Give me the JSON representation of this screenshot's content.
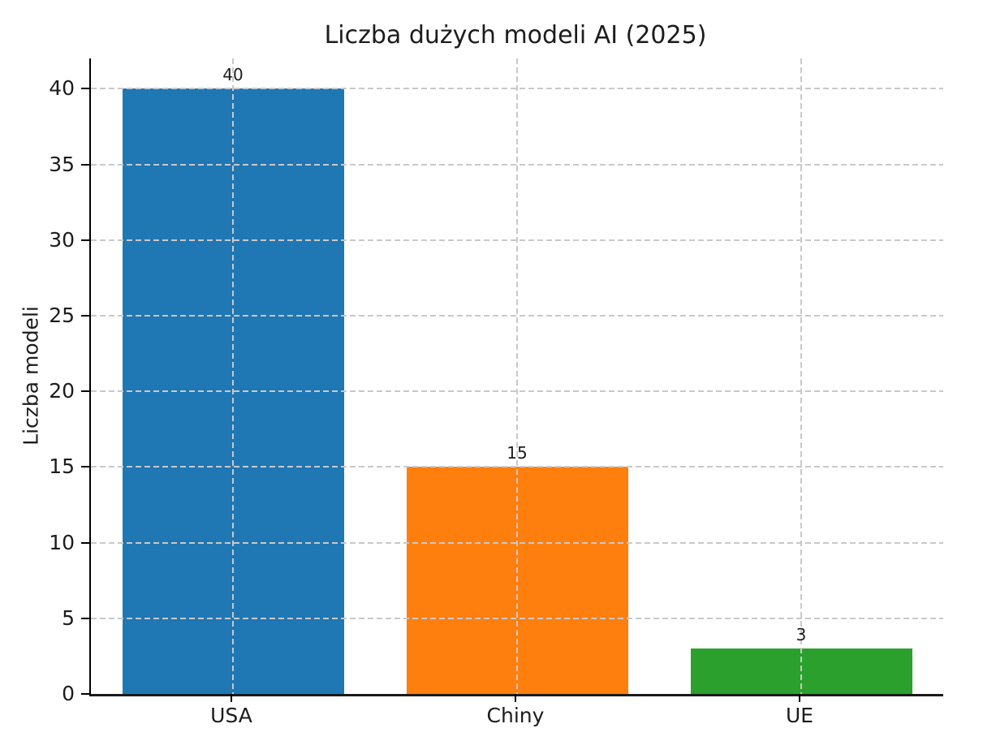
{
  "chart_data": {
    "type": "bar",
    "title": "Liczba dużych modeli AI (2025)",
    "xlabel": "",
    "ylabel": "Liczba modeli",
    "categories": [
      "USA",
      "Chiny",
      "UE"
    ],
    "values": [
      40,
      15,
      3
    ],
    "value_labels": [
      "40",
      "15",
      "3"
    ],
    "bar_colors": [
      "#1f77b4",
      "#ff7f0e",
      "#2ca02c"
    ],
    "yticks": [
      0,
      5,
      10,
      15,
      20,
      25,
      30,
      35,
      40
    ],
    "ylim": [
      0,
      42
    ],
    "grid": "dashed horizontal and vertical gridlines drawn over bars",
    "grid_color": "#c9c9c9",
    "axis_color": "#000000",
    "text_color": "#1c1c1c",
    "background": "#ffffff",
    "legend": "none",
    "spines": "left and bottom only"
  }
}
